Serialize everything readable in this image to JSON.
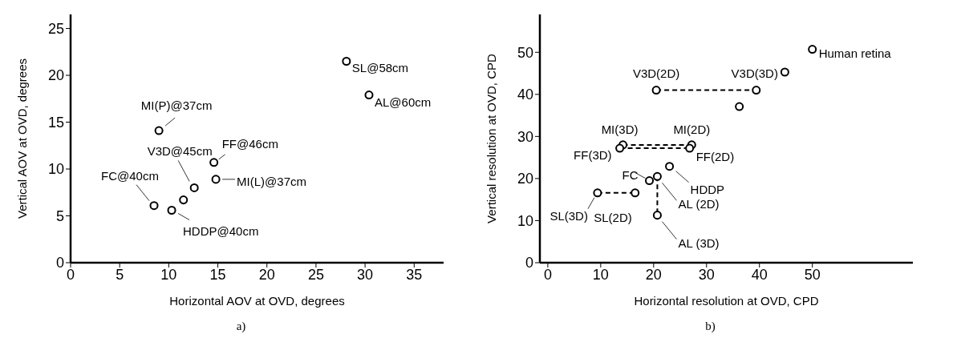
{
  "chart_data": [
    {
      "type": "scatter",
      "xlabel": "Horizontal AOV at OVD, degrees",
      "ylabel": "Vertical AOV at OVD, degrees",
      "xlim": [
        0,
        38
      ],
      "ylim": [
        0,
        26.5
      ],
      "xticks": [
        0,
        5,
        10,
        15,
        20,
        25,
        30,
        35
      ],
      "yticks": [
        0,
        5,
        10,
        15,
        20,
        25
      ],
      "grid": false,
      "legend": false,
      "marker": "circle",
      "series": [
        {
          "color": "#000000",
          "x": [
            28.1,
            30.4,
            9.0,
            14.6,
            12.6,
            14.8,
            11.5,
            8.5,
            10.3
          ],
          "values": [
            21.5,
            17.9,
            14.1,
            10.7,
            8.0,
            8.9,
            6.7,
            6.1,
            5.6
          ]
        }
      ],
      "annotations": [
        {
          "text": "SL@58cm",
          "x": 28.1,
          "y": 21.5
        },
        {
          "text": "AL@60cm",
          "x": 30.4,
          "y": 17.9
        },
        {
          "text": "MI(P)@37cm",
          "x": 9.0,
          "y": 14.1
        },
        {
          "text": "FF@46cm",
          "x": 14.6,
          "y": 10.7
        },
        {
          "text": "V3D@45cm",
          "x": 12.6,
          "y": 8.0
        },
        {
          "text": "MI(L)@37cm",
          "x": 14.8,
          "y": 8.9
        },
        {
          "text": "FC@40cm",
          "x": 8.5,
          "y": 6.1
        },
        {
          "text": "HDDP@40cm",
          "x": 10.3,
          "y": 5.6
        },
        "a)"
      ]
    },
    {
      "type": "scatter",
      "xlabel": "Horizontal resolution at OVD, CPD",
      "ylabel": "Vertical resolution at OVD, CPD",
      "xlim": [
        -1.5,
        69
      ],
      "ylim": [
        0,
        59
      ],
      "xticks": [
        0,
        10,
        20,
        30,
        40,
        50
      ],
      "yticks": [
        0,
        10,
        20,
        30,
        40,
        50
      ],
      "grid": false,
      "legend": false,
      "marker": "circle",
      "series": [
        {
          "type": "line",
          "marker": "none",
          "line_style": "dashed",
          "color": "#000000",
          "x": [
            20.5,
            39.4
          ],
          "values": [
            41,
            41
          ]
        },
        {
          "type": "line",
          "marker": "none",
          "line_style": "dashed",
          "color": "#000000",
          "x": [
            14.2,
            27.2
          ],
          "values": [
            28.0,
            28.0
          ]
        },
        {
          "type": "line",
          "marker": "none",
          "line_style": "dashed",
          "color": "#000000",
          "x": [
            13.6,
            26.8
          ],
          "values": [
            27.2,
            27.2
          ]
        },
        {
          "type": "line",
          "marker": "none",
          "line_style": "dashed",
          "color": "#000000",
          "x": [
            9.4,
            16.5
          ],
          "values": [
            16.6,
            16.6
          ]
        },
        {
          "type": "line",
          "marker": "none",
          "line_style": "dashed",
          "color": "#000000",
          "x": [
            20.7,
            20.7
          ],
          "values": [
            20.5,
            11.3
          ]
        },
        {
          "color": "#000000",
          "x": [
            50,
            44.8,
            20.5,
            39.4,
            36.2,
            14.2,
            27.2,
            13.6,
            26.8,
            23.0,
            19.2,
            20.7,
            20.7,
            9.4,
            16.5
          ],
          "values": [
            50.7,
            45.3,
            41,
            41,
            37.1,
            28.0,
            28.0,
            27.2,
            27.2,
            22.9,
            19.5,
            20.5,
            11.3,
            16.6,
            16.6
          ]
        }
      ],
      "annotations": [
        {
          "text": "Human retina",
          "x": 50,
          "y": 50.7
        },
        {
          "text": "V3D(2D)",
          "x": 20.5,
          "y": 41
        },
        {
          "text": "V3D(3D)",
          "x": 39.4,
          "y": 41
        },
        {
          "text": "MI(3D)",
          "x": 14.2,
          "y": 28.0
        },
        {
          "text": "MI(2D)",
          "x": 27.2,
          "y": 28.0
        },
        {
          "text": "FF(3D)",
          "x": 13.6,
          "y": 27.2
        },
        {
          "text": "FF(2D)",
          "x": 26.8,
          "y": 27.2
        },
        {
          "text": "HDDP",
          "x": 23.0,
          "y": 22.9
        },
        {
          "text": "FC",
          "x": 19.2,
          "y": 19.5
        },
        {
          "text": "AL (2D)",
          "x": 20.7,
          "y": 20.5
        },
        {
          "text": "AL (3D)",
          "x": 20.7,
          "y": 11.3
        },
        {
          "text": "SL(3D)",
          "x": 9.4,
          "y": 16.6
        },
        {
          "text": "SL(2D)",
          "x": 16.5,
          "y": 16.6
        },
        "b)"
      ]
    }
  ]
}
